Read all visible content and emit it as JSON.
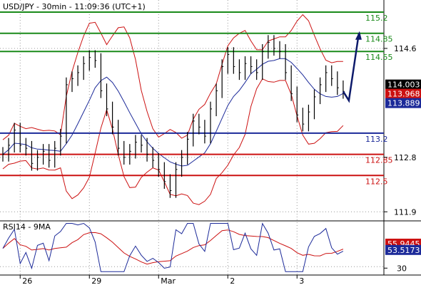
{
  "chart_data": {
    "type": "line",
    "title": "USD/JPY - 30min - 11:09:36 (UTC+1)",
    "price_panel": {
      "ylim": [
        111.75,
        115.4
      ],
      "y_ticks": [
        {
          "value": 114.6,
          "label": "114.6"
        },
        {
          "value": 112.8,
          "label": "112.8"
        },
        {
          "value": 111.9,
          "label": "111.9"
        }
      ],
      "levels": [
        {
          "name": "resistance",
          "value": 115.2,
          "label": "115.2",
          "color": "#1a8a1a"
        },
        {
          "name": "resistance",
          "value": 114.85,
          "label": "114.85",
          "color": "#1a8a1a"
        },
        {
          "name": "resistance",
          "value": 114.55,
          "label": "114.55",
          "color": "#1a8a1a"
        },
        {
          "name": "pivot",
          "value": 113.2,
          "label": "113.2",
          "color": "#1c2a99"
        },
        {
          "name": "support",
          "value": 112.85,
          "label": "112.85",
          "color": "#cc1111"
        },
        {
          "name": "support",
          "value": 112.5,
          "label": "112.5",
          "color": "#cc1111"
        }
      ],
      "current_tags": [
        {
          "value": 114.003,
          "label": "114.003",
          "color": "#000000"
        },
        {
          "value": 113.968,
          "label": "113.968",
          "color": "#cc1111"
        },
        {
          "value": 113.889,
          "label": "113.889",
          "color": "#1c2a99"
        }
      ],
      "close_series": [
        112.85,
        113.0,
        113.25,
        113.0,
        112.95,
        112.7,
        112.8,
        112.9,
        112.75,
        112.95,
        113.15,
        114.0,
        114.1,
        114.2,
        114.35,
        114.45,
        114.4,
        113.9,
        113.6,
        113.3,
        112.95,
        112.8,
        112.9,
        113.05,
        113.0,
        112.85,
        112.75,
        112.6,
        112.4,
        112.25,
        112.6,
        112.8,
        113.1,
        113.4,
        113.3,
        113.15,
        113.6,
        113.9,
        114.3,
        114.5,
        114.3,
        114.2,
        114.35,
        114.3,
        114.2,
        114.55,
        114.7,
        114.6,
        114.55,
        114.2,
        113.85,
        113.5,
        113.35,
        113.55,
        113.8,
        114.0,
        114.2,
        114.1,
        113.95,
        113.889
      ],
      "projection": [
        113.889,
        114.3,
        114.85
      ]
    },
    "rsi_panel": {
      "title": "RSI14 - 9MA",
      "ylim": [
        20,
        85
      ],
      "y_ticks": [
        {
          "value": 30,
          "label": "30"
        }
      ],
      "tags": [
        {
          "value": 55.9445,
          "label": "55.9445",
          "color": "#cc1111"
        },
        {
          "value": 53.5173,
          "label": "53.5173",
          "color": "#1c2a99"
        }
      ]
    },
    "x_ticks": [
      {
        "index": 3,
        "label": "26"
      },
      {
        "index": 15,
        "label": "29"
      },
      {
        "index": 27,
        "label": "Mar"
      },
      {
        "index": 39,
        "label": "2"
      },
      {
        "index": 51,
        "label": "3"
      }
    ],
    "colors": {
      "price": "#000000",
      "bollinger": "#cc1111",
      "moving_average": "#1c2a99",
      "projection": "#0d1a6b",
      "grid": "#999999"
    }
  }
}
